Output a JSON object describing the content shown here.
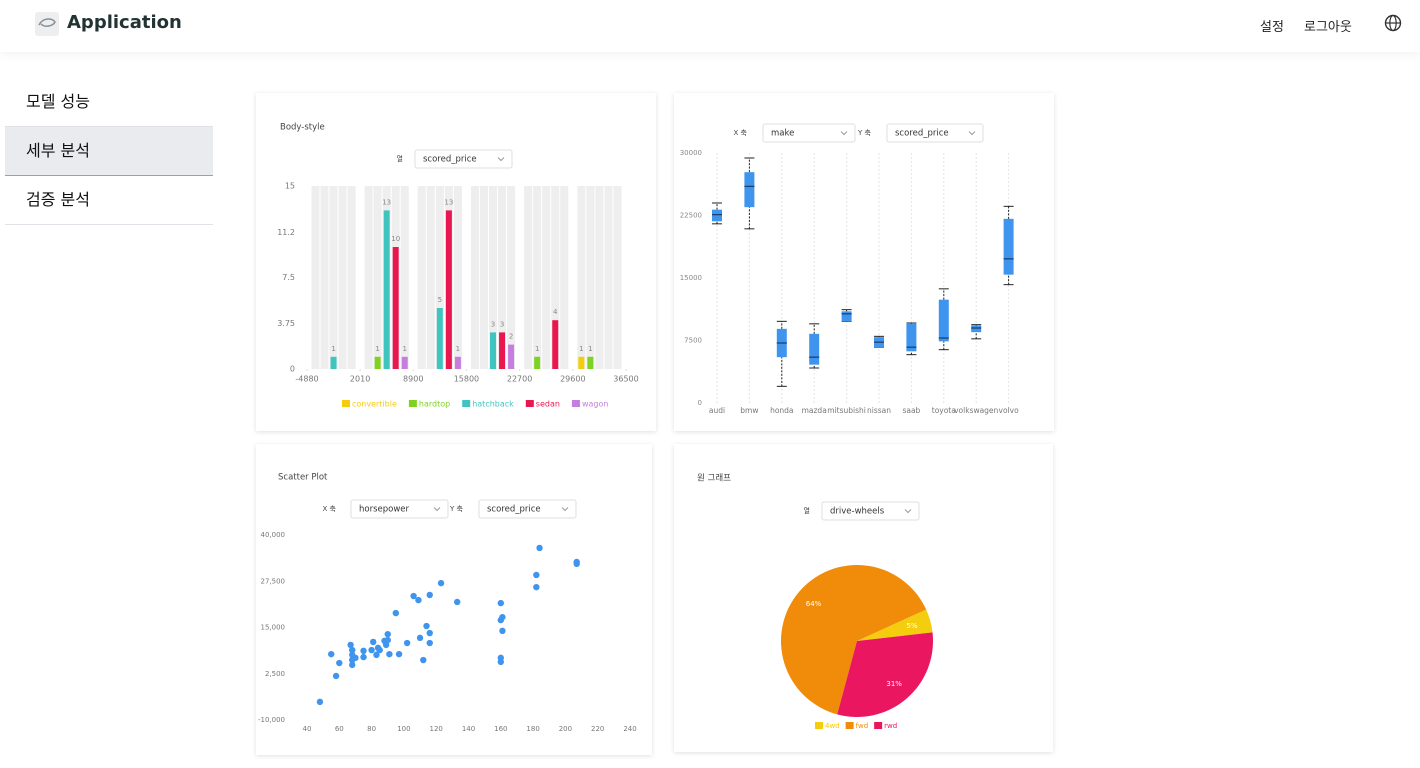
{
  "header": {
    "title": "Application",
    "menu": [
      "설정",
      "로그아웃"
    ]
  },
  "sidebar": {
    "items": [
      "모델 성능",
      "세부 분석",
      "검증 분석"
    ],
    "active": 1
  },
  "chart_data": [
    {
      "type": "histogram",
      "title": "Body-style",
      "controls": [
        {
          "label": "열",
          "value": "scored_price"
        }
      ],
      "bins": [
        -4880,
        2010,
        8900,
        15800,
        22700,
        29600,
        36500
      ],
      "xlim": [
        -4880,
        36500
      ],
      "xticks": [
        -4880,
        2010,
        8900,
        15800,
        22700,
        29600,
        36500
      ],
      "ylim": [
        0,
        15
      ],
      "yticks": [
        0,
        3.75,
        7.5,
        11.2,
        15
      ],
      "series": [
        {
          "name": "convertible",
          "color": "#f5cd0f",
          "values": [
            0,
            0,
            0,
            0,
            0,
            1
          ]
        },
        {
          "name": "hardtop",
          "color": "#7ed321",
          "values": [
            0,
            1,
            0,
            0,
            1,
            1
          ]
        },
        {
          "name": "hatchback",
          "color": "#40c4c0",
          "values": [
            1,
            13,
            5,
            3,
            0,
            0
          ]
        },
        {
          "name": "sedan",
          "color": "#e8174f",
          "values": [
            0,
            10,
            13,
            3,
            4,
            0
          ]
        },
        {
          "name": "wagon",
          "color": "#c77ddf",
          "values": [
            0,
            1,
            1,
            2,
            0,
            0
          ]
        }
      ]
    },
    {
      "type": "box",
      "controls": [
        {
          "label": "X 축",
          "value": "make"
        },
        {
          "label": "Y 축",
          "value": "scored_price"
        }
      ],
      "categories": [
        "audi",
        "bmw",
        "honda",
        "mazda",
        "mitsubishi",
        "nissan",
        "saab",
        "toyota",
        "volkswagen",
        "volvo"
      ],
      "boxes": [
        {
          "min": 21500,
          "q1": 21800,
          "median": 22600,
          "q3": 23200,
          "max": 24000
        },
        {
          "min": 20900,
          "q1": 23500,
          "median": 26000,
          "q3": 27700,
          "max": 29400
        },
        {
          "min": 2000,
          "q1": 5500,
          "median": 7200,
          "q3": 8900,
          "max": 9800
        },
        {
          "min": 4200,
          "q1": 4600,
          "median": 5500,
          "q3": 8300,
          "max": 9500
        },
        {
          "min": 9800,
          "q1": 9800,
          "median": 10700,
          "q3": 11000,
          "max": 11200
        },
        {
          "min": 6700,
          "q1": 6700,
          "median": 7300,
          "q3": 7900,
          "max": 8000
        },
        {
          "min": 5800,
          "q1": 6200,
          "median": 6700,
          "q3": 9500,
          "max": 9600
        },
        {
          "min": 6400,
          "q1": 7400,
          "median": 7800,
          "q3": 12400,
          "max": 13700
        },
        {
          "min": 7700,
          "q1": 8500,
          "median": 9000,
          "q3": 9300,
          "max": 9400
        },
        {
          "min": 14200,
          "q1": 15400,
          "median": 17300,
          "q3": 22100,
          "max": 23600
        }
      ],
      "color": "#3f95ee",
      "ylim": [
        0,
        30000
      ],
      "yticks": [
        0,
        7500,
        15000,
        22500,
        30000
      ]
    },
    {
      "type": "scatter",
      "title": "Scatter Plot",
      "controls": [
        {
          "label": "X 축",
          "value": "horsepower"
        },
        {
          "label": "Y 축",
          "value": "scored_price"
        }
      ],
      "x": [
        48,
        55,
        58,
        60,
        67,
        68,
        68,
        68,
        68,
        70,
        75,
        75,
        80,
        81,
        83,
        84,
        85,
        88,
        89,
        90,
        90,
        91,
        95,
        97,
        102,
        106,
        109,
        110,
        112,
        114,
        116,
        116,
        116,
        123,
        133,
        160,
        161,
        160,
        161,
        160,
        160,
        182,
        182,
        184,
        207,
        207
      ],
      "values": [
        -5100,
        7800,
        1900,
        5400,
        10300,
        8900,
        7600,
        6200,
        4900,
        6800,
        8700,
        7000,
        8900,
        11100,
        7600,
        9500,
        8900,
        11400,
        10300,
        11600,
        13200,
        7800,
        18900,
        7800,
        10800,
        23500,
        22400,
        12200,
        6200,
        15400,
        23800,
        10800,
        13500,
        27000,
        21900,
        21600,
        17800,
        17000,
        14100,
        6800,
        5700,
        29200,
        25900,
        36500,
        32700,
        32200
      ],
      "color": "#3f95ee",
      "xlim": [
        40,
        240
      ],
      "xticks": [
        40,
        60,
        80,
        100,
        120,
        140,
        160,
        180,
        200,
        220,
        240
      ],
      "ylim": [
        -10000,
        40000
      ],
      "yticks": [
        {
          "value": 40000,
          "label": "40,000"
        },
        {
          "value": 27500,
          "label": "27,500"
        },
        {
          "value": 15000,
          "label": "15,000"
        },
        {
          "value": 2500,
          "label": "2,500"
        },
        {
          "value": -10000,
          "label": "-10,000"
        }
      ]
    },
    {
      "type": "pie",
      "title": "원 그래프",
      "controls": [
        {
          "label": "열",
          "value": "drive-wheels"
        }
      ],
      "categories": [
        "4wd",
        "fwd",
        "rwd"
      ],
      "values": [
        5,
        64,
        31
      ],
      "value_labels": [
        "5%",
        "64%",
        "31%"
      ],
      "colors": [
        "#f5cd0f",
        "#f08c0a",
        "#ea1660"
      ]
    }
  ]
}
